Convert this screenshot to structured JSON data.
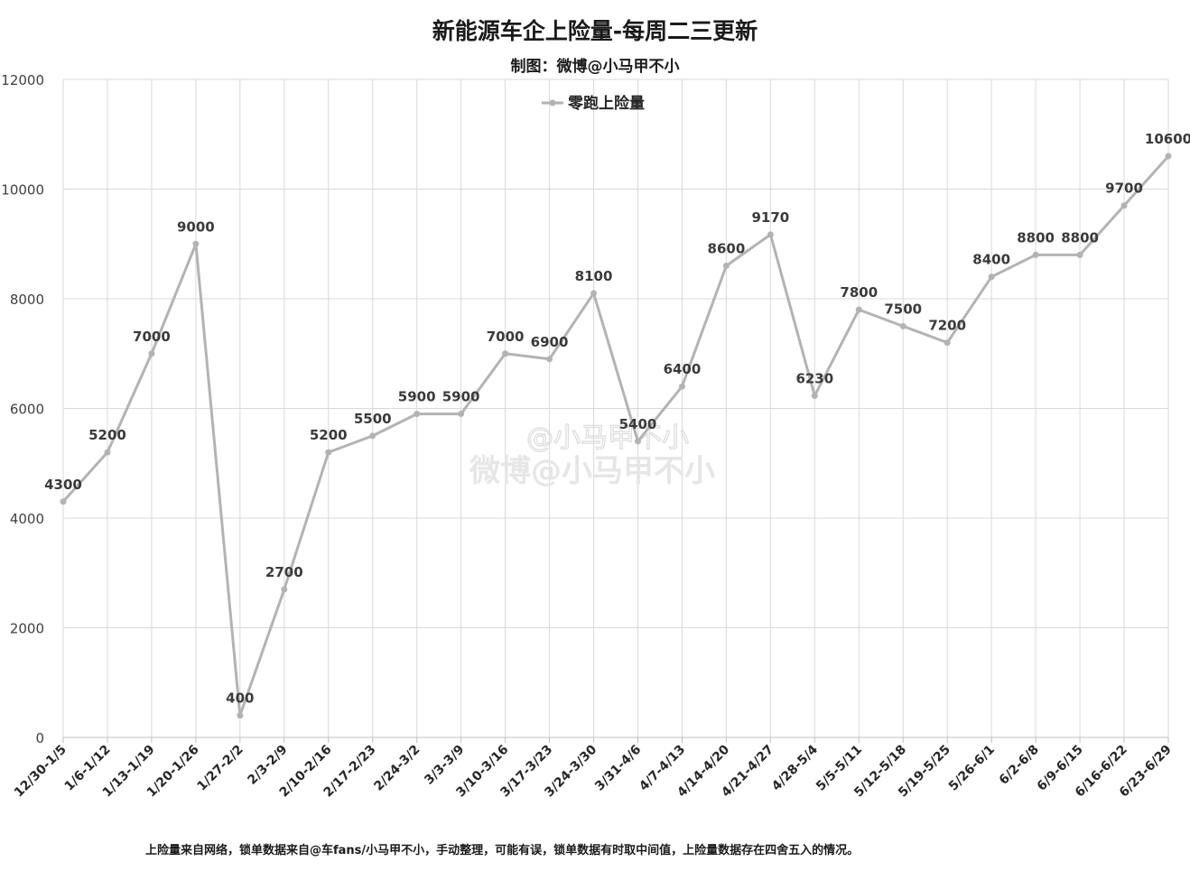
{
  "header": {
    "title": "新能源车企上险量-每周二三更新",
    "subtitle": "制图：微博@小马甲不小"
  },
  "footnote": "上险量来自网络，锁单数据来自@车fans/小马甲不小，手动整理，可能有误，锁单数据有时取中间值，上险量数据存在四舍五入的情况。",
  "watermark": {
    "line1": "@小马甲不小",
    "line2": "微博@小马甲不小"
  },
  "colors": {
    "series": "#b3b3b3",
    "grid": "#d9d9d9",
    "watermark": "#e6e6e6"
  },
  "chart_data": {
    "type": "line",
    "title": "新能源车企上险量-每周二三更新",
    "ylim": [
      0,
      12000
    ],
    "yticks": [
      0,
      2000,
      4000,
      6000,
      8000,
      10000,
      12000
    ],
    "grid": true,
    "legend_position": "top-center",
    "categories": [
      "12/30-1/5",
      "1/6-1/12",
      "1/13-1/19",
      "1/20-1/26",
      "1/27-2/2",
      "2/3-2/9",
      "2/10-2/16",
      "2/17-2/23",
      "2/24-3/2",
      "3/3-3/9",
      "3/10-3/16",
      "3/17-3/23",
      "3/24-3/30",
      "3/31-4/6",
      "4/7-4/13",
      "4/14-4/20",
      "4/21-4/27",
      "4/28-5/4",
      "5/5-5/11",
      "5/12-5/18",
      "5/19-5/25",
      "5/26-6/1",
      "6/2-6/8",
      "6/9-6/15",
      "6/16-6/22",
      "6/23-6/29"
    ],
    "series": [
      {
        "name": "零跑上险量",
        "values": [
          4300,
          5200,
          7000,
          9000,
          400,
          2700,
          5200,
          5500,
          5900,
          5900,
          7000,
          6900,
          8100,
          5400,
          6400,
          8600,
          9170,
          6230,
          7800,
          7500,
          7200,
          8400,
          8800,
          8800,
          9700,
          10600
        ]
      }
    ]
  }
}
